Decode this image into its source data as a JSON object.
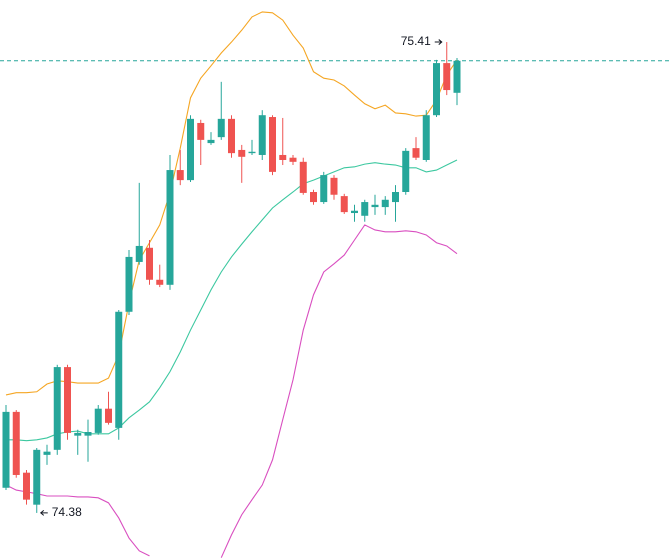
{
  "chart_data": {
    "type": "candlestick",
    "ylim": [
      74.277,
      75.502
    ],
    "up_color": "#26a69a",
    "down_color": "#ef5350",
    "price_line_color": "#26a69a",
    "open": [
      74.435,
      74.601,
      74.468,
      74.398,
      74.507,
      74.518,
      74.699,
      74.549,
      74.549,
      74.555,
      74.608,
      74.566,
      74.82,
      74.929,
      74.96,
      74.89,
      74.879,
      75.13,
      75.108,
      75.233,
      75.189,
      75.202,
      75.242,
      75.174,
      75.167,
      75.163,
      75.246,
      75.163,
      75.157,
      75.148,
      75.082,
      75.06,
      75.113,
      75.073,
      75.036,
      75.03,
      75.049,
      75.049,
      75.06,
      75.082,
      75.178,
      75.152,
      75.25,
      75.364,
      75.299
    ],
    "high": [
      74.616,
      74.605,
      74.474,
      74.522,
      74.529,
      74.704,
      74.704,
      74.562,
      74.584,
      74.616,
      74.645,
      74.824,
      74.955,
      75.102,
      74.977,
      74.923,
      75.163,
      75.174,
      75.25,
      75.24,
      75.213,
      75.323,
      75.25,
      75.185,
      75.196,
      75.261,
      75.25,
      75.244,
      75.163,
      75.157,
      75.087,
      75.126,
      75.119,
      75.078,
      75.054,
      75.065,
      75.076,
      75.073,
      75.097,
      75.178,
      75.202,
      75.261,
      75.371,
      75.41,
      75.375
    ],
    "low": [
      74.43,
      74.457,
      74.398,
      74.38,
      74.485,
      74.507,
      74.54,
      74.507,
      74.492,
      74.551,
      74.573,
      74.54,
      74.813,
      74.923,
      74.879,
      74.874,
      74.868,
      75.097,
      75.104,
      75.141,
      75.185,
      75.196,
      75.157,
      75.102,
      75.163,
      75.152,
      75.119,
      75.141,
      75.141,
      75.076,
      75.054,
      75.056,
      75.065,
      75.034,
      75.017,
      75.017,
      75.032,
      75.032,
      75.017,
      75.076,
      75.152,
      75.148,
      75.246,
      75.294,
      75.272
    ],
    "close": [
      74.601,
      74.463,
      74.409,
      74.518,
      74.514,
      74.699,
      74.555,
      74.555,
      74.557,
      74.608,
      74.577,
      74.82,
      74.94,
      74.964,
      74.89,
      74.879,
      75.13,
      75.108,
      75.242,
      75.196,
      75.196,
      75.242,
      75.167,
      75.159,
      75.17,
      75.25,
      75.126,
      75.152,
      75.148,
      75.08,
      75.06,
      75.119,
      75.076,
      75.038,
      75.041,
      75.06,
      75.054,
      75.065,
      75.082,
      75.172,
      75.157,
      75.25,
      75.364,
      75.305,
      75.369
    ],
    "lines": [
      {
        "color": "#f5a623",
        "values": [
          74.638,
          74.643,
          74.643,
          74.645,
          74.662,
          74.669,
          74.667,
          74.664,
          74.664,
          74.664,
          74.675,
          74.726,
          74.839,
          74.933,
          74.971,
          75.01,
          75.08,
          75.178,
          75.288,
          75.331,
          75.358,
          75.386,
          75.41,
          75.436,
          75.465,
          75.476,
          75.474,
          75.458,
          75.425,
          75.397,
          75.345,
          75.331,
          75.327,
          75.314,
          75.294,
          75.275,
          75.264,
          75.272,
          75.255,
          75.253,
          75.248,
          75.25,
          75.283,
          75.338,
          75.371
        ]
      },
      {
        "color": "#3cc8a0",
        "values": [
          74.54,
          74.54,
          74.538,
          74.54,
          74.544,
          74.553,
          74.557,
          74.559,
          74.553,
          74.553,
          74.553,
          74.566,
          74.588,
          74.605,
          74.623,
          74.654,
          74.689,
          74.732,
          74.78,
          74.824,
          74.868,
          74.907,
          74.94,
          74.968,
          74.995,
          75.021,
          75.047,
          75.065,
          75.082,
          75.1,
          75.108,
          75.117,
          75.126,
          75.135,
          75.137,
          75.143,
          75.146,
          75.143,
          75.141,
          75.135,
          75.135,
          75.126,
          75.13,
          75.141,
          75.152
        ]
      },
      {
        "color": "#d94fc0",
        "values": [
          74.441,
          74.43,
          74.426,
          74.422,
          74.417,
          74.417,
          74.417,
          74.415,
          74.415,
          74.413,
          74.402,
          74.369,
          74.325,
          74.297,
          74.286,
          null,
          null,
          null,
          null,
          null,
          null,
          74.282,
          74.332,
          74.376,
          74.409,
          74.441,
          74.496,
          74.584,
          74.671,
          74.78,
          74.857,
          74.907,
          74.925,
          74.944,
          74.977,
          75.01,
          74.999,
          74.995,
          74.995,
          74.997,
          74.995,
          74.988,
          74.971,
          74.964,
          74.947
        ]
      }
    ]
  }
}
